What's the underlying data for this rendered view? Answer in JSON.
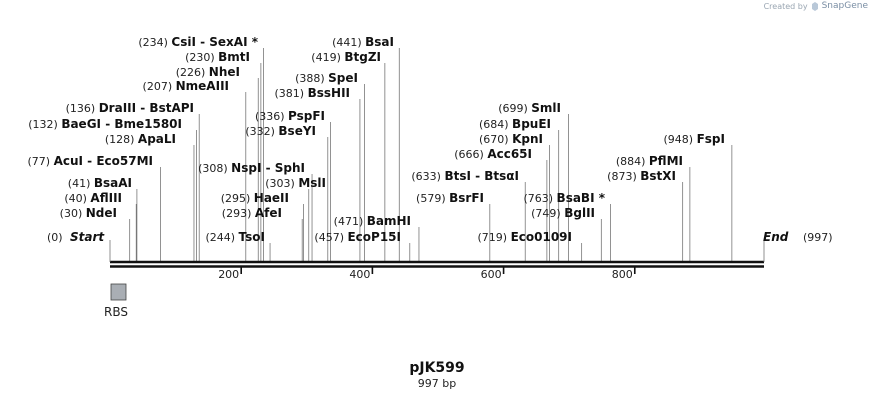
{
  "watermark": {
    "created_by": "Created by",
    "brand": "SnapGene"
  },
  "map": {
    "name": "pJK599",
    "length_label": "997 bp",
    "total_bp": 997,
    "start_label": "Start",
    "start_pos": "(0)",
    "end_label": "End",
    "end_pos": "(997)",
    "scale_ticks": [
      "200",
      "400",
      "600",
      "800"
    ]
  },
  "colors": {
    "feature_fill": "#a9aeb4",
    "backbone": "#111111",
    "leader": "#777777"
  },
  "features": [
    {
      "name": "RBS",
      "start": 1,
      "end": 12
    }
  ],
  "sites": [
    {
      "pos": "(30)",
      "name": "NdeI",
      "bp": 30
    },
    {
      "pos": "(40)",
      "name": "AflIII",
      "bp": 40
    },
    {
      "pos": "(41)",
      "name": "BsaAI",
      "bp": 41
    },
    {
      "pos": "(77)",
      "name": "AcuI  -  Eco57MI",
      "bp": 77
    },
    {
      "pos": "(128)",
      "name": "ApaLI",
      "bp": 128
    },
    {
      "pos": "(132)",
      "name": "BaeGI  -  Bme1580I",
      "bp": 132
    },
    {
      "pos": "(136)",
      "name": "DraIII  -  BstAPI",
      "bp": 136
    },
    {
      "pos": "(207)",
      "name": "NmeAIII",
      "bp": 207
    },
    {
      "pos": "(226)",
      "name": "NheI",
      "bp": 226
    },
    {
      "pos": "(230)",
      "name": "BmtI",
      "bp": 230
    },
    {
      "pos": "(234)",
      "name": "CsiI  -  SexAI *",
      "bp": 234
    },
    {
      "pos": "(244)",
      "name": "TsoI",
      "bp": 244
    },
    {
      "pos": "(293)",
      "name": "AfeI",
      "bp": 293
    },
    {
      "pos": "(295)",
      "name": "HaeII",
      "bp": 295
    },
    {
      "pos": "(303)",
      "name": "MslI",
      "bp": 303
    },
    {
      "pos": "(308)",
      "name": "NspI  -  SphI",
      "bp": 308
    },
    {
      "pos": "(332)",
      "name": "BseYI",
      "bp": 332
    },
    {
      "pos": "(336)",
      "name": "PspFI",
      "bp": 336
    },
    {
      "pos": "(381)",
      "name": "BssHII",
      "bp": 381
    },
    {
      "pos": "(388)",
      "name": "SpeI",
      "bp": 388
    },
    {
      "pos": "(419)",
      "name": "BtgZI",
      "bp": 419
    },
    {
      "pos": "(441)",
      "name": "BsaI",
      "bp": 441
    },
    {
      "pos": "(457)",
      "name": "EcoP15I",
      "bp": 457
    },
    {
      "pos": "(471)",
      "name": "BamHI",
      "bp": 471
    },
    {
      "pos": "(579)",
      "name": "BsrFI",
      "bp": 579
    },
    {
      "pos": "(633)",
      "name": "BtsI  -  BtsαI",
      "bp": 633
    },
    {
      "pos": "(666)",
      "name": "Acc65I",
      "bp": 666
    },
    {
      "pos": "(670)",
      "name": "KpnI",
      "bp": 670
    },
    {
      "pos": "(684)",
      "name": "BpuEI",
      "bp": 684
    },
    {
      "pos": "(699)",
      "name": "SmlI",
      "bp": 699
    },
    {
      "pos": "(719)",
      "name": "Eco0109I",
      "bp": 719
    },
    {
      "pos": "(749)",
      "name": "BglII",
      "bp": 749
    },
    {
      "pos": "(763)",
      "name": "BsaBI *",
      "bp": 763
    },
    {
      "pos": "(873)",
      "name": "BstXI",
      "bp": 873
    },
    {
      "pos": "(884)",
      "name": "PflMI",
      "bp": 884
    },
    {
      "pos": "(948)",
      "name": "FspI",
      "bp": 948
    }
  ]
}
